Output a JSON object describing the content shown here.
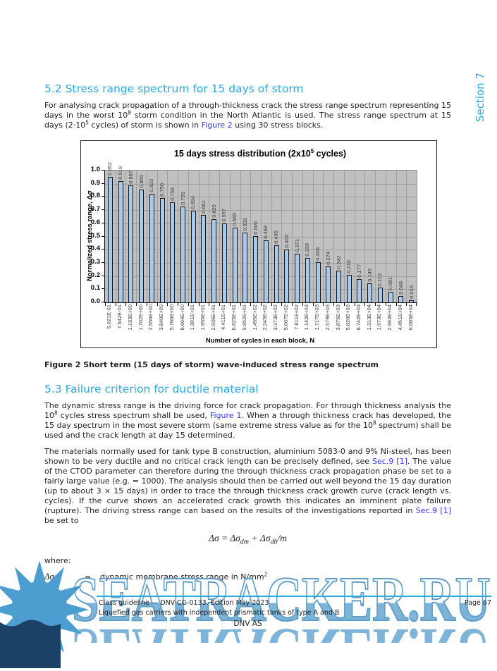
{
  "colors": {
    "accent": "#29a9e0",
    "link": "#3333ff",
    "watermark_blue": "#7db4d8",
    "chart_bar_fill": "#a6c9ec",
    "chart_plot_bg": "#c0c0c0",
    "chart_grid": "#9e9e9e"
  },
  "section_tab": {
    "label": "Section 7"
  },
  "heading_52": "5.2 Stress range spectrum for 15 days of storm",
  "para_52": [
    {
      "t": "For analysing crack propagation of a through-thickness crack the stress range spectrum representing 15 days in the worst 10"
    },
    {
      "t": "8",
      "sup": true
    },
    {
      "t": " storm condition in the North Atlantic is used. The stress range spectrum at 15 days (2·10"
    },
    {
      "t": "5",
      "sup": true
    },
    {
      "t": " cycles) of storm is shown in "
    },
    {
      "t": "Figure 2",
      "link": true
    },
    {
      "t": " using 30 stress blocks."
    }
  ],
  "chart_data": {
    "type": "bar",
    "title_parts": [
      {
        "t": "15 days stress distribution (2x10"
      },
      {
        "t": "5",
        "sup": true
      },
      {
        "t": " cycles)"
      }
    ],
    "xlabel": "Number of cycles in each block, N",
    "ylabel": "Normalized stress range, Δσ",
    "ylim": [
      0,
      1.0
    ],
    "grid": true,
    "legend": "none",
    "yticks": [
      "1.0",
      "0.9",
      "0.8",
      "0.7",
      "0.6",
      "0.5",
      "0.4",
      "0.3",
      "0.2",
      "0.1",
      "0.0"
    ],
    "categories": [
      "5.021E-01",
      "7.542E-01",
      "1.133E+00",
      "1.702E+00",
      "2.556E+00",
      "3.840E+00",
      "5.766E+00",
      "8.664E+00",
      "1.301E+01",
      "1.955E+01",
      "2.936E+01",
      "4.411E+01",
      "6.625E+01",
      "9.952E+01",
      "1.495E+02",
      "2.245E+02",
      "3.373E+02",
      "5.067E+02",
      "7.611E+02",
      "1.143E+03",
      "1.717E+03",
      "2.579E+03",
      "3.875E+03",
      "5.820E+03",
      "8.742E+03",
      "1.313E+04",
      "1.973E+04",
      "2.963E+04",
      "4.451E+04",
      "6.685E+04"
    ],
    "values": [
      0.952,
      0.919,
      0.887,
      0.855,
      0.823,
      0.79,
      0.758,
      0.726,
      0.694,
      0.661,
      0.629,
      0.597,
      0.565,
      0.532,
      0.5,
      0.468,
      0.435,
      0.403,
      0.371,
      0.339,
      0.306,
      0.274,
      0.242,
      0.21,
      0.177,
      0.145,
      0.113,
      0.081,
      0.048,
      0.016
    ]
  },
  "figure_caption": "Figure 2 Short term (15 days of storm) wave-induced stress range spectrum",
  "heading_53": "5.3 Failure criterion for ductile material",
  "para_53a": [
    {
      "t": "The dynamic stress range is the driving force for crack propagation. For through thickness analysis the 10"
    },
    {
      "t": "8",
      "sup": true
    },
    {
      "t": " cycles stress spectrum shall be used, "
    },
    {
      "t": "Figure 1",
      "link": true
    },
    {
      "t": ". When a through thickness crack has developed, the 15 day spectrum in the most severe storm (same extreme stress value as for the 10"
    },
    {
      "t": "8",
      "sup": true
    },
    {
      "t": " spectrum) shall be used and the crack length at day 15 determined."
    }
  ],
  "para_53b": [
    {
      "t": "The materials normally used for tank type B construction, aluminium 5083-0 and 9% Ni-steel, has been shown to be very ductile and no critical crack length can be precisely defined, see "
    },
    {
      "t": "Sec.9 [1]",
      "link": true
    },
    {
      "t": ". The value of the CTOD parameter can therefore during the through thickness crack propagation phase be set to a fairly large value (e.g. = 1000). The analysis should then be carried out well beyond the 15 day duration (up to about 3 × 15 days) in order to trace the through thickness crack growth curve (crack length vs. cycles). If the curve shows an accelerated crack growth this indicates an imminent plate failure (rupture). The driving stress range can based on the results of the investigations reported in "
    },
    {
      "t": "Sec.9 [1]",
      "link": true
    },
    {
      "t": " be set to"
    }
  ],
  "formula": [
    {
      "t": "Δσ = Δσ"
    },
    {
      "t": "dm",
      "sub": true
    },
    {
      "t": " + Δσ"
    },
    {
      "t": "db",
      "sub": true
    },
    {
      "t": "/m"
    }
  ],
  "where_label": "where:",
  "definition": {
    "term": [
      {
        "t": "Δσ"
      },
      {
        "t": "dm",
        "sub": true
      }
    ],
    "eq": "=",
    "desc": [
      {
        "t": "dynamic membrane stress range in N/mm"
      },
      {
        "t": "2",
        "sup": true
      }
    ]
  },
  "footer": {
    "line1": "Class guideline — DNV-CG-0133. Edition May 2023",
    "page": "Page 67",
    "line2": "Liquefied gas carriers with independent prismatic tanks of type A and B",
    "company": "DNV AS"
  },
  "watermark": {
    "text": "SEATRACKER.RU"
  }
}
